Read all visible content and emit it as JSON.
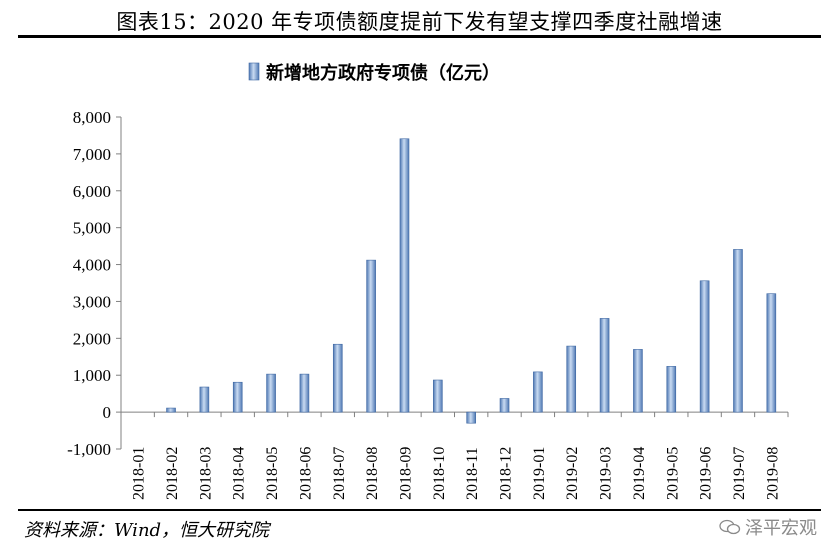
{
  "figure": {
    "title": "图表15：2020 年专项债额度提前下发有望支撑四季度社融增速",
    "source": "资料来源：Wind，恒大研究院",
    "watermark": "泽平宏观"
  },
  "chart_data": {
    "type": "bar",
    "title": "",
    "xlabel": "",
    "ylabel": "",
    "ylim": [
      -1000,
      8000
    ],
    "yticks": [
      -1000,
      0,
      1000,
      2000,
      3000,
      4000,
      5000,
      6000,
      7000,
      8000
    ],
    "ytick_labels": [
      "-1,000",
      "0",
      "1,000",
      "2,000",
      "3,000",
      "4,000",
      "5,000",
      "6,000",
      "7,000",
      "8,000"
    ],
    "legend": "top-center",
    "grid": false,
    "categories": [
      "2018-01",
      "2018-02",
      "2018-03",
      "2018-04",
      "2018-05",
      "2018-06",
      "2018-07",
      "2018-08",
      "2018-09",
      "2018-10",
      "2018-11",
      "2018-12",
      "2019-01",
      "2019-02",
      "2019-03",
      "2019-04",
      "2019-05",
      "2019-06",
      "2019-07",
      "2019-08"
    ],
    "series": [
      {
        "name": "新增地方政府专项债（亿元）",
        "color": "#7fa3d6",
        "values": [
          0,
          110,
          680,
          810,
          1030,
          1030,
          1840,
          4120,
          7410,
          870,
          -300,
          370,
          1090,
          1790,
          2540,
          1700,
          1240,
          3560,
          4410,
          3210
        ]
      }
    ]
  }
}
